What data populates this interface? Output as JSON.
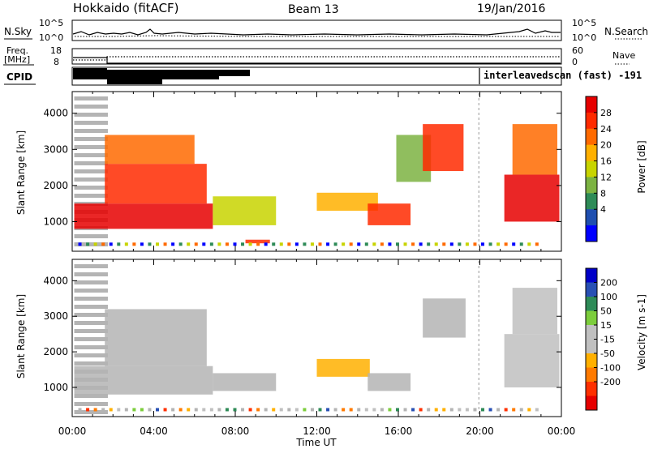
{
  "header": {
    "station": "Hokkaido (fitACF)",
    "beam": "Beam 13",
    "date": "19/Jan/2016"
  },
  "strip_panels": {
    "nsky_label": "N.Sky",
    "nsky_ticks": [
      "10^5",
      "10^0"
    ],
    "nsearch_label": "N.Search",
    "nsearch_ticks": [
      "10^5",
      "10^0"
    ],
    "freq_label_1": "Freq.",
    "freq_label_2": "[MHz]",
    "freq_ticks": [
      "18",
      "8"
    ],
    "nave_label": "Nave",
    "nave_ticks": [
      "60",
      "0"
    ],
    "cpid_label": "CPID",
    "cpid_text": "interleavedscan (fast) -191"
  },
  "colors": {
    "power_scale": [
      "#0000ff",
      "#1f4fb0",
      "#2e8b57",
      "#7cb342",
      "#c8d400",
      "#ffb000",
      "#ff6a00",
      "#ff2a00",
      "#e60000"
    ],
    "velocity_scale": [
      "#0000c8",
      "#2850b4",
      "#2e8b57",
      "#7ccd3c",
      "#c0c0c0",
      "#c0c0c0",
      "#ffb000",
      "#ff7a00",
      "#ff3000",
      "#e60000"
    ],
    "ground_scatter": "#b4b4b4"
  },
  "chart_data": [
    {
      "type": "heatmap",
      "panel": "power",
      "xlabel": "Time UT",
      "ylabel": "Slant Range [km]",
      "xlim": [
        "00:00",
        "24:00"
      ],
      "ylim": [
        180,
        4600
      ],
      "x_ticks": [
        "00:00",
        "04:00",
        "08:00",
        "12:00",
        "16:00",
        "20:00",
        "00:00"
      ],
      "y_ticks": [
        "4000",
        "3000",
        "2000",
        "1000"
      ],
      "colorbar_label": "Power [dB]",
      "colorbar_ticks": [
        "28",
        "24",
        "20",
        "16",
        "12",
        "8",
        "4"
      ],
      "colorbar_range": [
        0,
        30
      ],
      "regions": [
        {
          "t_start": 0.1,
          "t_end": 6.9,
          "r_min": 800,
          "r_max": 1500,
          "value": 28
        },
        {
          "t_start": 1.6,
          "t_end": 6.6,
          "r_min": 1500,
          "r_max": 2600,
          "value": 24
        },
        {
          "t_start": 1.6,
          "t_end": 6.0,
          "r_min": 2600,
          "r_max": 3400,
          "value": 20
        },
        {
          "t_start": 6.9,
          "t_end": 10.0,
          "r_min": 900,
          "r_max": 1700,
          "value": 14
        },
        {
          "t_start": 8.5,
          "t_end": 9.7,
          "r_min": 400,
          "r_max": 500,
          "value": 26
        },
        {
          "t_start": 12.0,
          "t_end": 15.0,
          "r_min": 1300,
          "r_max": 1800,
          "value": 18
        },
        {
          "t_start": 14.5,
          "t_end": 16.6,
          "r_min": 900,
          "r_max": 1500,
          "value": 26
        },
        {
          "t_start": 15.9,
          "t_end": 17.6,
          "r_min": 2100,
          "r_max": 3400,
          "value": 12
        },
        {
          "t_start": 17.2,
          "t_end": 19.2,
          "r_min": 2400,
          "r_max": 3700,
          "value": 26
        },
        {
          "t_start": 21.2,
          "t_end": 23.9,
          "r_min": 1000,
          "r_max": 2300,
          "value": 28
        },
        {
          "t_start": 21.6,
          "t_end": 23.8,
          "r_min": 2300,
          "r_max": 3700,
          "value": 22
        }
      ]
    },
    {
      "type": "heatmap",
      "panel": "velocity",
      "xlabel": "Time UT",
      "ylabel": "Slant Range [km]",
      "xlim": [
        "00:00",
        "24:00"
      ],
      "ylim": [
        180,
        4600
      ],
      "x_ticks": [
        "00:00",
        "04:00",
        "08:00",
        "12:00",
        "16:00",
        "20:00",
        "00:00"
      ],
      "y_ticks": [
        "4000",
        "3000",
        "2000",
        "1000"
      ],
      "colorbar_label": "Velocity [m s-1]",
      "colorbar_ticks": [
        "200",
        "100",
        "50",
        "15",
        "-15",
        "-50",
        "-100",
        "-200"
      ],
      "colorbar_range": [
        -250,
        250
      ],
      "regions": [
        {
          "t_start": 0.1,
          "t_end": 6.9,
          "r_min": 800,
          "r_max": 1600,
          "value": 0
        },
        {
          "t_start": 1.6,
          "t_end": 6.6,
          "r_min": 1600,
          "r_max": 3200,
          "value": 0
        },
        {
          "t_start": 6.9,
          "t_end": 10.0,
          "r_min": 900,
          "r_max": 1400,
          "value": 0
        },
        {
          "t_start": 12.0,
          "t_end": 14.6,
          "r_min": 1300,
          "r_max": 1800,
          "value": -60
        },
        {
          "t_start": 14.5,
          "t_end": 16.6,
          "r_min": 900,
          "r_max": 1400,
          "value": 0
        },
        {
          "t_start": 17.2,
          "t_end": 19.3,
          "r_min": 2400,
          "r_max": 3500,
          "value": 0
        },
        {
          "t_start": 21.2,
          "t_end": 23.9,
          "r_min": 1000,
          "r_max": 2500,
          "value": 40
        },
        {
          "t_start": 21.6,
          "t_end": 23.8,
          "r_min": 2500,
          "r_max": 3800,
          "value": 30
        }
      ]
    }
  ]
}
